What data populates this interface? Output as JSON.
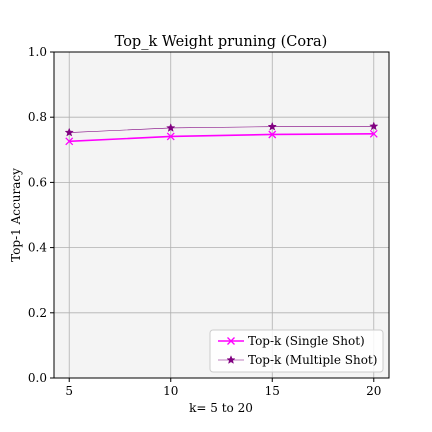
{
  "chart_data": {
    "type": "line",
    "title": "Top_k Weight pruning (Cora)",
    "xlabel": "k= 5 to 20",
    "ylabel": "Top-1 Accuracy",
    "x": [
      5,
      10,
      15,
      20
    ],
    "xticks": [
      "5",
      "10",
      "15",
      "20"
    ],
    "xlim": [
      4.25,
      20.75
    ],
    "ylim": [
      0,
      1
    ],
    "yticks": [
      "0.0",
      "0.2",
      "0.4",
      "0.6",
      "0.8",
      "1.0"
    ],
    "grid": true,
    "legend_position": "lower-right",
    "series": [
      {
        "name": "Top-k (Single Shot)",
        "values": [
          0.726,
          0.741,
          0.747,
          0.749
        ],
        "color": "#ff00ff",
        "marker": "x"
      },
      {
        "name": "Top-k (Multiple Shot)",
        "values": [
          0.753,
          0.767,
          0.771,
          0.772
        ],
        "color": "#800080",
        "marker": "star"
      }
    ],
    "colors": {
      "plot_background": "#f4f4f4",
      "grid": "#b0b0b0"
    }
  }
}
